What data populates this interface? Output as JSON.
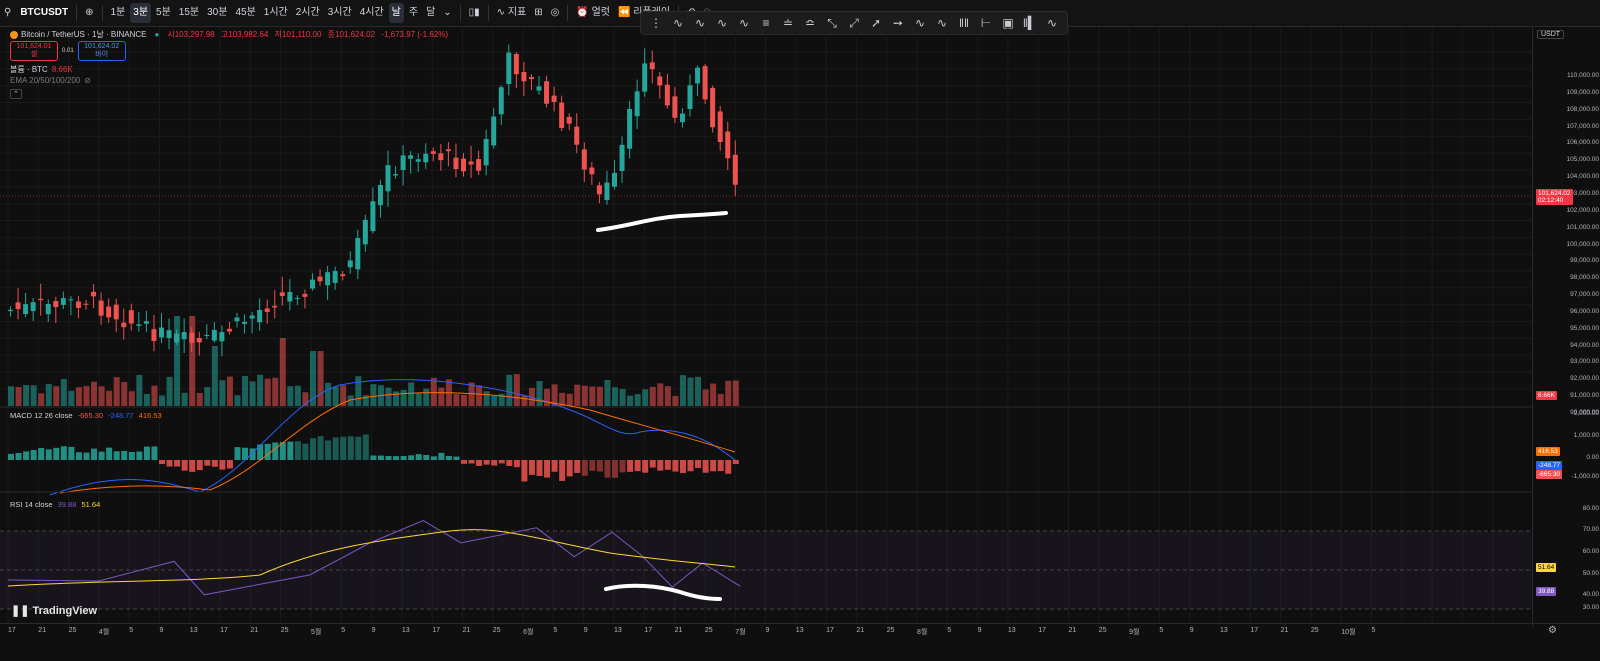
{
  "toolbar": {
    "symbol": "BTCUSDT",
    "intervals": [
      "1분",
      "3분",
      "5분",
      "15분",
      "30분",
      "45분",
      "1시간",
      "2시간",
      "3시간",
      "4시간",
      "날",
      "주",
      "달"
    ],
    "active_interval": "날",
    "indicators_label": "지표",
    "alert_label": "얼럿",
    "replay_label": "리플레이"
  },
  "legend": {
    "title": "Bitcoin / TetherUS · 1날 · BINANCE",
    "ohlc": [
      "시103,297.98",
      "고103,982.64",
      "저101,110.00",
      "종101,624.02",
      "-1,673.97 (-1.62%)"
    ],
    "sell_price": "101,624.01",
    "sell_label": "셀",
    "spread": "0.01",
    "buy_price": "101,624.02",
    "buy_label": "바이",
    "volume_label": "볼륨 · BTC",
    "volume_value": "8.66K",
    "ema_label": "EMA 20/50/100/200"
  },
  "macd_label": {
    "name": "MACD 12 26 close",
    "v1": "-665.30",
    "v2": "-248.77",
    "v3": "416.53"
  },
  "rsi_label": {
    "name": "RSI 14 close",
    "v1": "39.88",
    "v2": "51.64"
  },
  "price_scale": {
    "currency": "USDT",
    "labels": [
      "110,000.00",
      "109,000.00",
      "108,000.00",
      "107,000.00",
      "106,000.00",
      "105,000.00",
      "104,000.00",
      "103,000.00",
      "102,000.00",
      "101,000.00",
      "100,000.00",
      "99,000.00",
      "98,000.00",
      "97,000.00",
      "96,000.00",
      "95,000.00",
      "94,000.00",
      "93,000.00",
      "92,000.00",
      "91,000.00",
      "90,000.00"
    ],
    "current_price": "101,624.02",
    "countdown": "02:12:40",
    "volume_tag": "8.66K"
  },
  "macd_scale": {
    "labels": [
      "2,000.00",
      "1,000.00",
      "0.00",
      "-1,000.00"
    ],
    "tags": [
      "416.53",
      "-248.77",
      "-665.30"
    ]
  },
  "rsi_scale": {
    "labels": [
      "80.00",
      "70.00",
      "60.00",
      "50.00",
      "40.00",
      "30.00"
    ],
    "tags": [
      "51.64",
      "39.88"
    ]
  },
  "time_axis": [
    "17",
    "21",
    "25",
    "4월",
    "5",
    "9",
    "13",
    "17",
    "21",
    "25",
    "5월",
    "5",
    "9",
    "13",
    "17",
    "21",
    "25",
    "6월",
    "5",
    "9",
    "13",
    "17",
    "21",
    "25",
    "7월",
    "9",
    "13",
    "17",
    "21",
    "25",
    "8월",
    "5",
    "9",
    "13",
    "17",
    "21",
    "25",
    "9월",
    "5",
    "9",
    "13",
    "17",
    "21",
    "25",
    "10월",
    "5"
  ],
  "colors": {
    "up": "#26a69a",
    "down": "#ef5350",
    "bg": "#0f0f0f",
    "macd_line": "#2962ff",
    "signal_line": "#ff6d00",
    "rsi_line": "#7e57c2",
    "rsi_ma": "#fdd835"
  },
  "logo": "TradingView"
}
